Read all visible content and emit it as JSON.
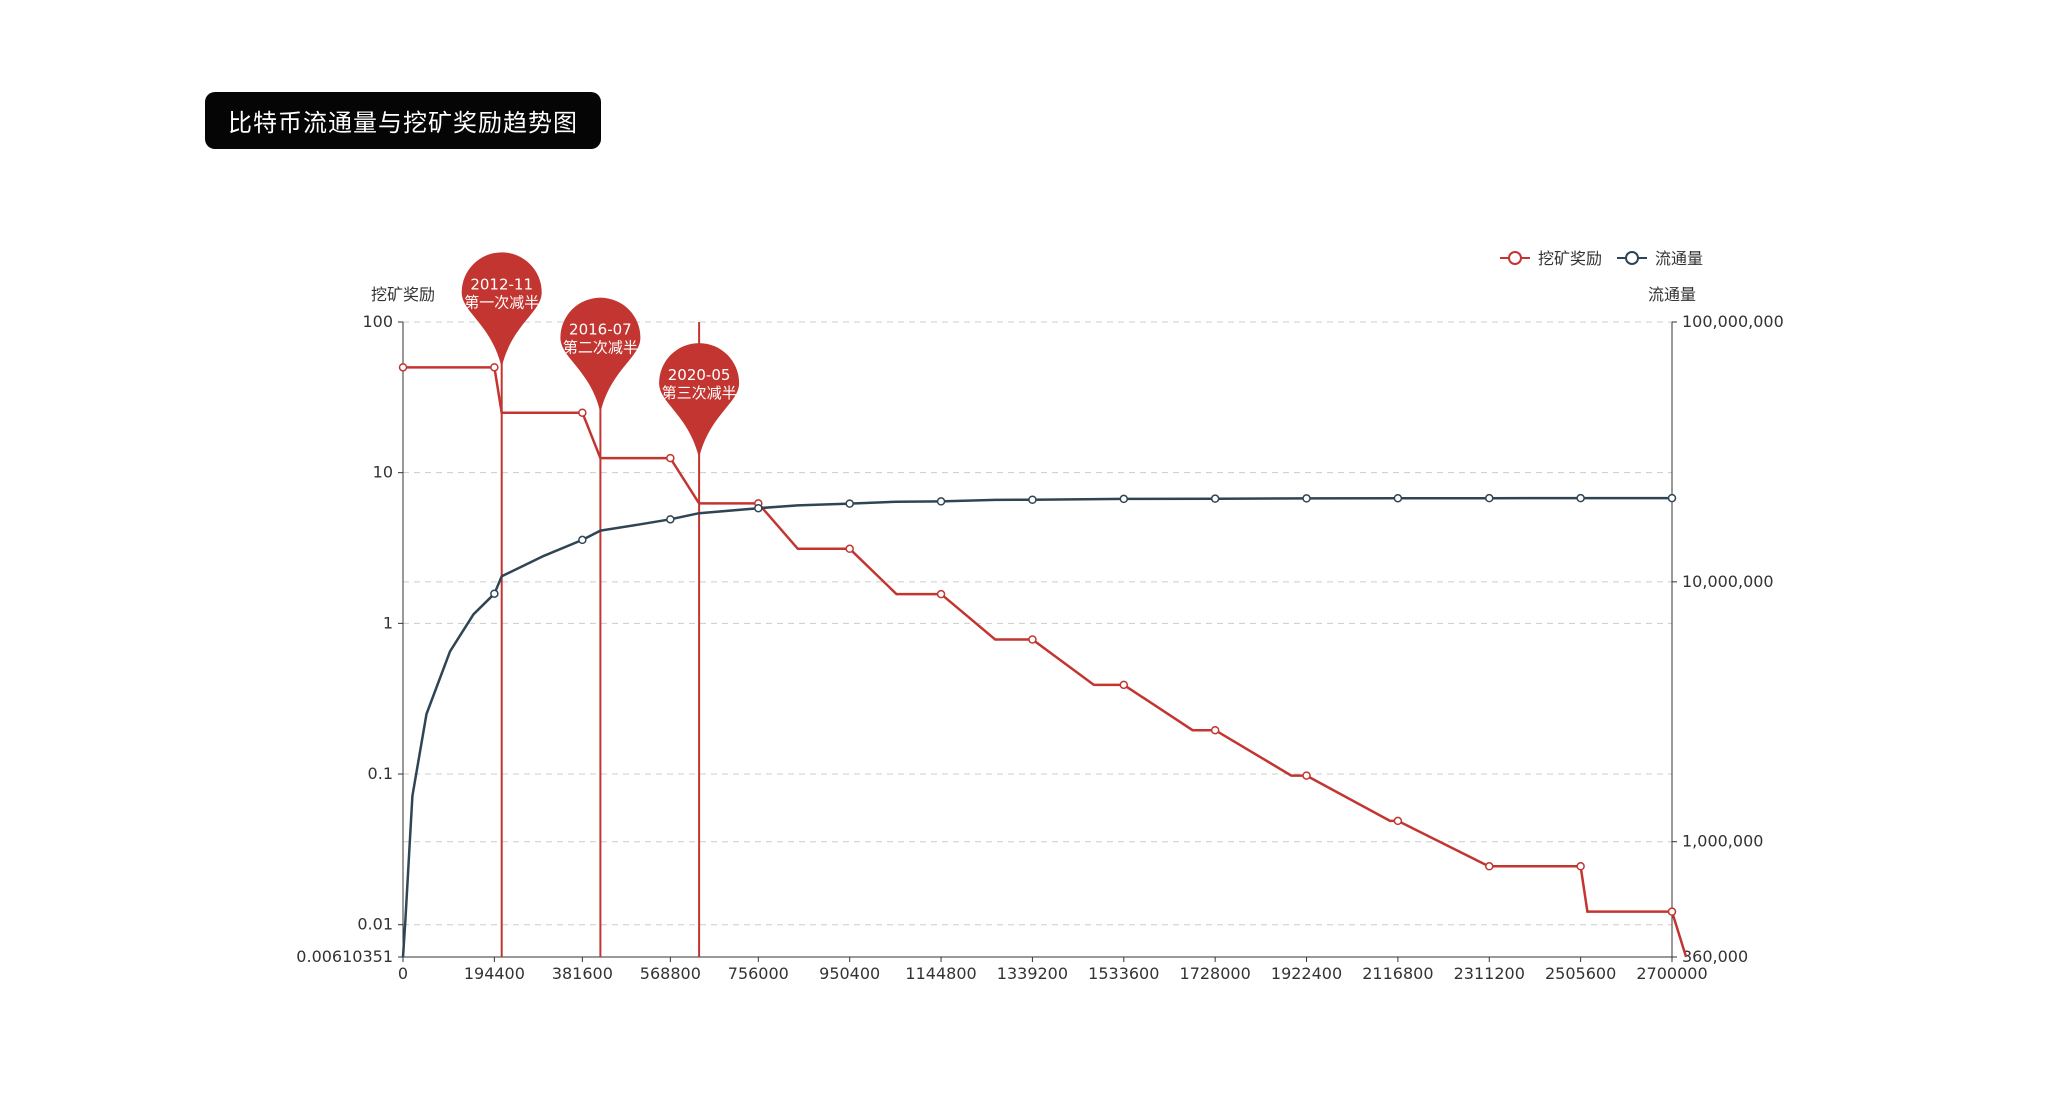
{
  "header": {
    "title": "比特币流通量与挖矿奖励趋势图"
  },
  "colors": {
    "reward": "#c23531",
    "supply": "#2f4554",
    "grid": "#cccccc",
    "axis": "#333333"
  },
  "chart_data": {
    "type": "line",
    "title": "比特币流通量与挖矿奖励趋势图",
    "x": {
      "ticks": [
        0,
        194400,
        381600,
        568800,
        756000,
        950400,
        1144800,
        1339200,
        1533600,
        1728000,
        1922400,
        2116800,
        2311200,
        2505600,
        2700000
      ],
      "range": [
        0,
        2700000
      ]
    },
    "y_left": {
      "name": "挖矿奖励",
      "scale": "log",
      "range": [
        0.00610351,
        100
      ],
      "tick_labels": [
        {
          "value": 0.00610351,
          "label": "0.00610351"
        },
        {
          "value": 0.01,
          "label": "0.01"
        },
        {
          "value": 0.1,
          "label": "0.1"
        },
        {
          "value": 1,
          "label": "1"
        },
        {
          "value": 10,
          "label": "10"
        },
        {
          "value": 100,
          "label": "100"
        }
      ]
    },
    "y_right": {
      "name": "流通量",
      "scale": "log",
      "range": [
        360000,
        100000000
      ],
      "tick_labels": [
        {
          "value": 360000,
          "label": "360,000"
        },
        {
          "value": 1000000,
          "label": "1,000,000"
        },
        {
          "value": 10000000,
          "label": "10,000,000"
        },
        {
          "value": 100000000,
          "label": "100,000,000"
        }
      ]
    },
    "grid": true,
    "legend": {
      "placement": "top-right",
      "items": [
        "挖矿奖励",
        "流通量"
      ]
    },
    "series": [
      {
        "name": "挖矿奖励",
        "axis": "left",
        "step": true,
        "points": [
          [
            0,
            50
          ],
          [
            194400,
            50
          ],
          [
            210000,
            25
          ],
          [
            381600,
            25
          ],
          [
            420000,
            12.5
          ],
          [
            568800,
            12.5
          ],
          [
            630000,
            6.25
          ],
          [
            756000,
            6.25
          ],
          [
            840000,
            3.125
          ],
          [
            950400,
            3.125
          ],
          [
            1050000,
            1.5625
          ],
          [
            1144800,
            1.5625
          ],
          [
            1260000,
            0.78125
          ],
          [
            1339200,
            0.78125
          ],
          [
            1470000,
            0.390625
          ],
          [
            1533600,
            0.390625
          ],
          [
            1680000,
            0.1953125
          ],
          [
            1728000,
            0.1953125
          ],
          [
            1890000,
            0.09765625
          ],
          [
            1922400,
            0.09765625
          ],
          [
            2100000,
            0.048828125
          ],
          [
            2116800,
            0.048828125
          ],
          [
            2310000,
            0.0244140625
          ],
          [
            2311200,
            0.0244140625
          ],
          [
            2505600,
            0.0244140625
          ],
          [
            2520000,
            0.01220703125
          ],
          [
            2700000,
            0.01220703125
          ],
          [
            2730000,
            0.00610351
          ],
          [
            2730000,
            0.00610351
          ]
        ],
        "markers_x": [
          0,
          194400,
          381600,
          568800,
          756000,
          950400,
          1144800,
          1339200,
          1533600,
          1728000,
          1922400,
          2116800,
          2311200,
          2505600,
          2700000
        ]
      },
      {
        "name": "流通量",
        "axis": "right",
        "points": [
          [
            0,
            360000
          ],
          [
            5000,
            500000
          ],
          [
            20000,
            1500000
          ],
          [
            50000,
            3100000
          ],
          [
            100000,
            5400000
          ],
          [
            150000,
            7500000
          ],
          [
            194400,
            9000000
          ],
          [
            210000,
            10500000
          ],
          [
            300000,
            12600000
          ],
          [
            381600,
            14500000
          ],
          [
            420000,
            15750000
          ],
          [
            500000,
            16600000
          ],
          [
            568800,
            17400000
          ],
          [
            630000,
            18375000
          ],
          [
            756000,
            19200000
          ],
          [
            840000,
            19687500
          ],
          [
            950400,
            20000000
          ],
          [
            1050000,
            20343750
          ],
          [
            1144800,
            20400000
          ],
          [
            1260000,
            20671875
          ],
          [
            1339200,
            20700000
          ],
          [
            1533600,
            20850000
          ],
          [
            1728000,
            20900000
          ],
          [
            1922400,
            20950000
          ],
          [
            2116800,
            20980000
          ],
          [
            2311200,
            20990000
          ],
          [
            2505600,
            20995000
          ],
          [
            2700000,
            20999000
          ],
          [
            2900000,
            21000000
          ]
        ],
        "markers_x": [
          194400,
          381600,
          568800,
          756000,
          950400,
          1144800,
          1339200,
          1533600,
          1728000,
          1922400,
          2116800,
          2311200,
          2505600,
          2700000
        ]
      }
    ],
    "mark_lines": [
      {
        "x": 210000,
        "date": "2012-11",
        "label": "第一次减半"
      },
      {
        "x": 420000,
        "date": "2016-07",
        "label": "第二次减半"
      },
      {
        "x": 630000,
        "date": "2020-05",
        "label": "第三次减半"
      }
    ]
  }
}
